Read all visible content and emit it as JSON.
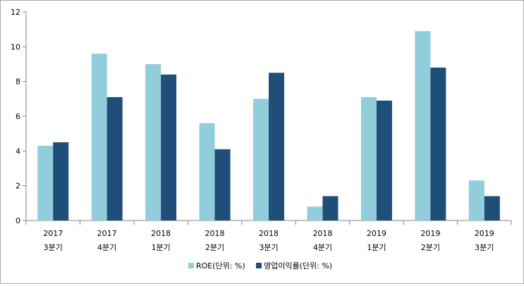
{
  "chart_data": {
    "type": "bar",
    "categories": [
      [
        "2017",
        "3분기"
      ],
      [
        "2017",
        "4분기"
      ],
      [
        "2018",
        "1분기"
      ],
      [
        "2018",
        "2분기"
      ],
      [
        "2018",
        "3분기"
      ],
      [
        "2018",
        "4분기"
      ],
      [
        "2019",
        "1분기"
      ],
      [
        "2019",
        "2분기"
      ],
      [
        "2019",
        "3분기"
      ]
    ],
    "series": [
      {
        "name": "ROE(단위: %)",
        "color": "#92cddc",
        "values": [
          4.3,
          9.6,
          9.0,
          5.6,
          7.0,
          0.8,
          7.1,
          10.9,
          2.3
        ]
      },
      {
        "name": "영업이익률(단위: %)",
        "color": "#1f4e79",
        "values": [
          4.5,
          7.1,
          8.4,
          4.1,
          8.5,
          1.4,
          6.9,
          8.8,
          1.4
        ]
      }
    ],
    "ylim": [
      0,
      12
    ],
    "yticks": [
      "0",
      "2",
      "4",
      "6",
      "8",
      "10",
      "12"
    ],
    "grid": false,
    "legend_position": "bottom"
  }
}
